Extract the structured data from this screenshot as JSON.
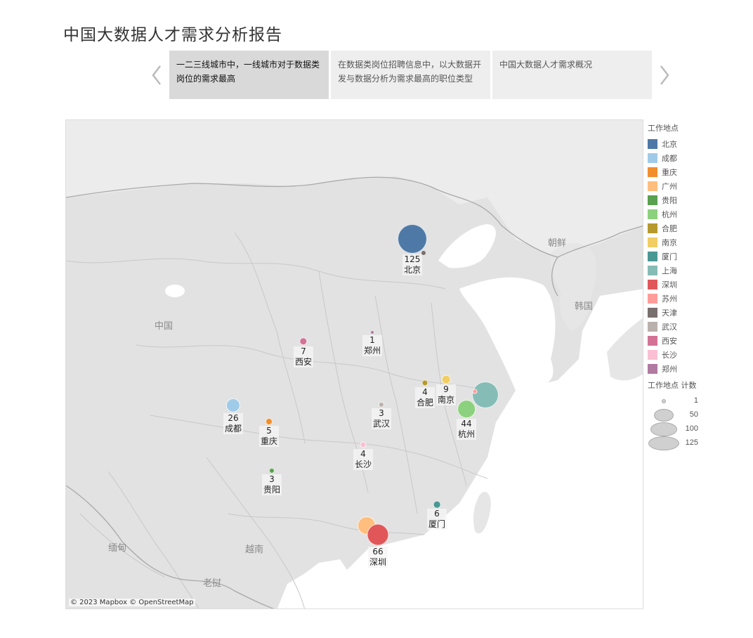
{
  "title": "中国大数据人才需求分析报告",
  "story_points": [
    {
      "label": "一二三线城市中，一线城市对于数据类岗位的需求最高",
      "active": true
    },
    {
      "label": "在数据类岗位招聘信息中，以大数据开发与数据分析为需求最高的职位类型",
      "active": false
    },
    {
      "label": "中国大数据人才需求概况",
      "active": false
    }
  ],
  "map": {
    "attribution": "© 2023 Mapbox © OpenStreetMap",
    "geo_labels": [
      "中国",
      "朝鲜",
      "韩国",
      "缅甸",
      "越南",
      "老挝"
    ]
  },
  "chart_data": {
    "type": "map-bubble",
    "color_field": "工作地点",
    "size_field": "工作地点 计数",
    "points": [
      {
        "city": "北京",
        "count": 125,
        "color": "#4e79a7"
      },
      {
        "city": "成都",
        "count": 26,
        "color": "#a0cbe8"
      },
      {
        "city": "重庆",
        "count": 5,
        "color": "#f28e2b"
      },
      {
        "city": "广州",
        "count": null,
        "color": "#ffbe7d"
      },
      {
        "city": "贵阳",
        "count": 3,
        "color": "#59a14f"
      },
      {
        "city": "杭州",
        "count": 44,
        "color": "#8cd17d"
      },
      {
        "city": "合肥",
        "count": 4,
        "color": "#b6992d"
      },
      {
        "city": "南京",
        "count": 9,
        "color": "#f1ce63"
      },
      {
        "city": "厦门",
        "count": 6,
        "color": "#499894"
      },
      {
        "city": "上海",
        "count": null,
        "color": "#86bcb6"
      },
      {
        "city": "深圳",
        "count": 66,
        "color": "#e15759"
      },
      {
        "city": "苏州",
        "count": null,
        "color": "#ff9d9a"
      },
      {
        "city": "天津",
        "count": null,
        "color": "#79706e"
      },
      {
        "city": "武汉",
        "count": 3,
        "color": "#bab0ac"
      },
      {
        "city": "西安",
        "count": 7,
        "color": "#d37295"
      },
      {
        "city": "长沙",
        "count": 4,
        "color": "#fabfd2"
      },
      {
        "city": "郑州",
        "count": 1,
        "color": "#b07aa1"
      }
    ]
  },
  "legend": {
    "color_title": "工作地点",
    "size_title": "工作地点 计数",
    "size_values": [
      "1",
      "50",
      "100",
      "125"
    ]
  }
}
